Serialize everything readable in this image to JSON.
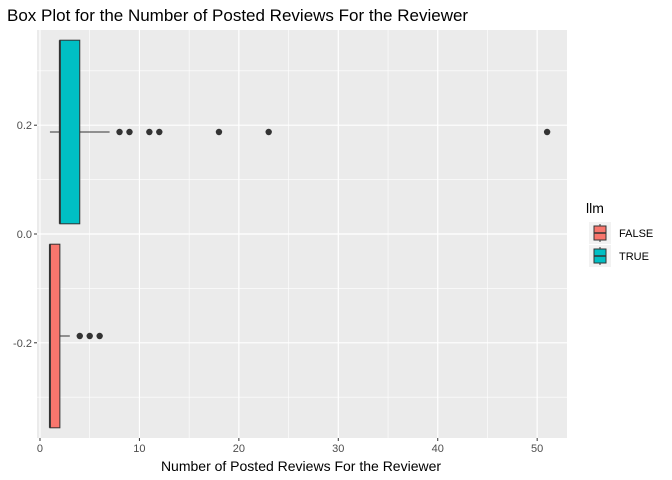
{
  "chart_data": {
    "type": "boxplot",
    "orientation": "horizontal",
    "title": "Box Plot for the Number of Posted Reviews For the Reviewer",
    "xlabel": "Number of Posted Reviews For the Reviewer",
    "ylabel": "",
    "xlim": [
      -0.3,
      53
    ],
    "ylim": [
      -0.375,
      0.375
    ],
    "x_ticks": [
      0,
      10,
      20,
      30,
      40,
      50
    ],
    "y_ticks": [
      0.2,
      0.0,
      -0.2
    ],
    "y_tick_labels": [
      "0.2",
      "0.0",
      "-0.2"
    ],
    "grid": true,
    "legend": {
      "title": "llm",
      "position": "right",
      "entries": [
        {
          "label": "FALSE",
          "color": "#F8766D"
        },
        {
          "label": "TRUE",
          "color": "#00BFC4"
        }
      ]
    },
    "series": [
      {
        "name": "FALSE",
        "color": "#F8766D",
        "y_center": -0.1875,
        "y_half_width": 0.1875,
        "whisker_low": 1,
        "q1": 1,
        "median": 1,
        "q3": 2,
        "whisker_high": 3,
        "outliers": [
          4,
          5,
          6
        ]
      },
      {
        "name": "TRUE",
        "color": "#00BFC4",
        "y_center": 0.1875,
        "y_half_width": 0.1875,
        "whisker_low": 1,
        "q1": 2,
        "median": 2,
        "q3": 4,
        "whisker_high": 7,
        "outliers": [
          8,
          9,
          11,
          12,
          18,
          23,
          51
        ]
      }
    ]
  }
}
